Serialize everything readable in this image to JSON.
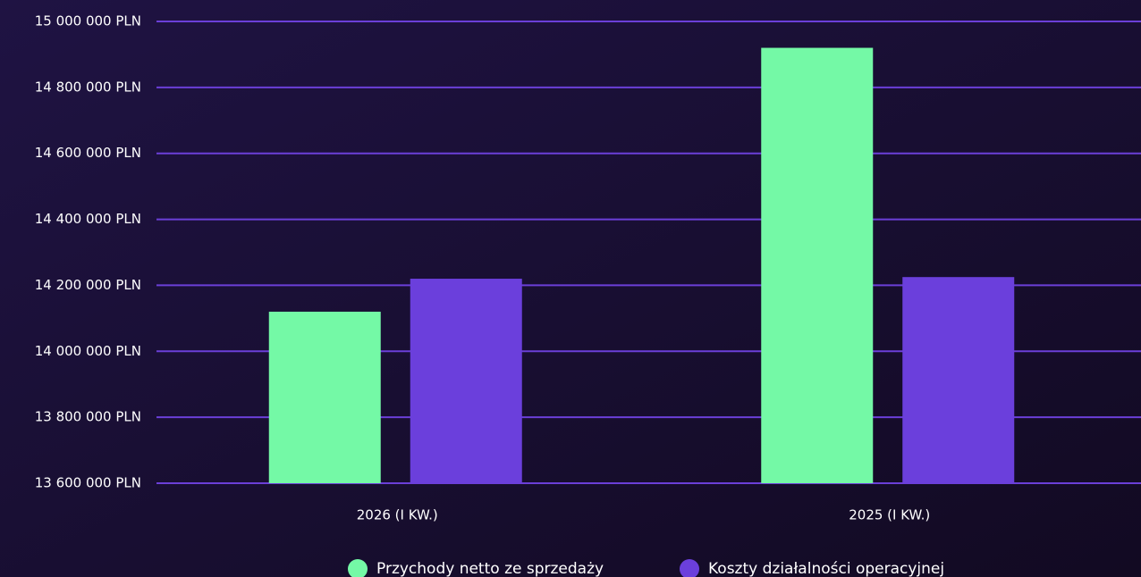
{
  "chart_data": {
    "type": "bar",
    "categories": [
      "2026 (I KW.)",
      "2025 (I KW.)"
    ],
    "series": [
      {
        "name": "Przychody netto ze sprzedaży",
        "color": "#74f9a6",
        "values": [
          14120000,
          14920000
        ]
      },
      {
        "name": "Koszty działalności operacyjnej",
        "color": "#6b3fdc",
        "values": [
          14220000,
          14225000
        ]
      }
    ],
    "ylim": [
      13600000,
      15000000
    ],
    "yticks": [
      {
        "value": 13600000,
        "label": "13 600 000 PLN"
      },
      {
        "value": 13800000,
        "label": "13 800 000 PLN"
      },
      {
        "value": 14000000,
        "label": "14 000 000 PLN"
      },
      {
        "value": 14200000,
        "label": "14 200 000 PLN"
      },
      {
        "value": 14400000,
        "label": "14 400 000 PLN"
      },
      {
        "value": 14600000,
        "label": "14 600 000 PLN"
      },
      {
        "value": 14800000,
        "label": "14 800 000 PLN"
      },
      {
        "value": 15000000,
        "label": "15 000 000 PLN"
      }
    ],
    "grid": true,
    "legend": "bottom"
  }
}
